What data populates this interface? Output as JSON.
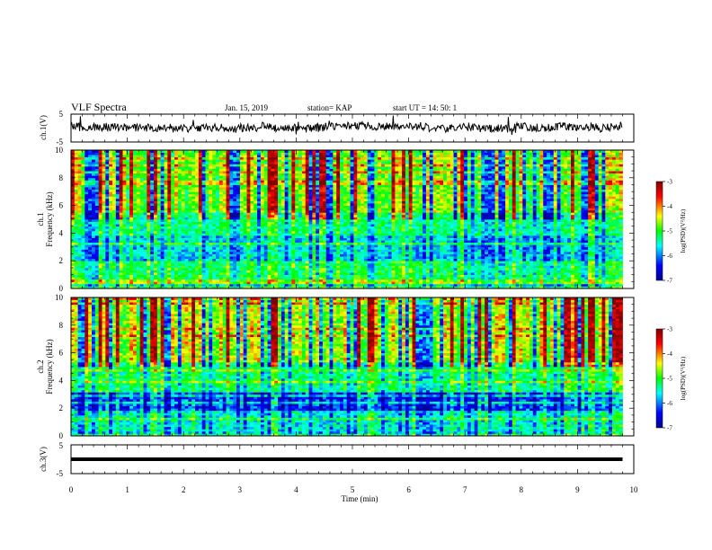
{
  "header": {
    "title": "VLF Spectra",
    "date": "Jan. 15, 2019",
    "station": "station= KAP",
    "start": "start  UT =   14: 50: 1"
  },
  "chart_data": [
    {
      "type": "line",
      "ylabel": "ch.1(V)",
      "ylim": [
        -5,
        5
      ],
      "yticks": [
        "5",
        "-5"
      ],
      "xlim": [
        0,
        10
      ],
      "series": [
        {
          "mean": 0.3,
          "noise_amplitude": 1.8,
          "x_end": 9.8
        }
      ]
    },
    {
      "type": "heatmap",
      "ylabel": "ch.1\nFrequency (kHz)",
      "ylabel_lines": [
        "ch.1",
        "Frequency (kHz)"
      ],
      "ylim": [
        0,
        10
      ],
      "yticks": [
        "0",
        "2",
        "4",
        "6",
        "8",
        "10"
      ],
      "xlim": [
        0,
        9.8
      ],
      "colorbar": {
        "label": "log(PSD)(V²/Hz)",
        "min": -7,
        "max": -3,
        "ticks": [
          "-3",
          "-4",
          "-5",
          "-6",
          "-7"
        ]
      }
    },
    {
      "type": "heatmap",
      "ylabel": "ch.2\nFrequency (kHz)",
      "ylabel_lines": [
        "ch.2",
        "Frequency (kHz)"
      ],
      "ylim": [
        0,
        10
      ],
      "yticks": [
        "0",
        "2",
        "4",
        "6",
        "8",
        "10"
      ],
      "xlim": [
        0,
        9.8
      ],
      "colorbar": {
        "label": "log(PSD)(V²/Hz)",
        "min": -7,
        "max": -3,
        "ticks": [
          "-3",
          "-4",
          "-5",
          "-6",
          "-7"
        ]
      }
    },
    {
      "type": "line",
      "ylabel": "ch.3(V)",
      "ylim": [
        -5,
        5
      ],
      "yticks": [
        "5",
        "-5"
      ],
      "xlim": [
        0,
        10
      ],
      "series": [
        {
          "constant": 0,
          "x_end": 9.8
        }
      ]
    }
  ],
  "xaxis": {
    "label": "Time (min)",
    "range": [
      0,
      10
    ],
    "ticks": [
      "0",
      "1",
      "2",
      "3",
      "4",
      "5",
      "6",
      "7",
      "8",
      "9",
      "10"
    ]
  },
  "colors": {
    "trace": "#000000",
    "colormap": [
      "#00008f",
      "#0000ff",
      "#00ffff",
      "#00ff00",
      "#ffff00",
      "#ff0000",
      "#800000"
    ]
  }
}
